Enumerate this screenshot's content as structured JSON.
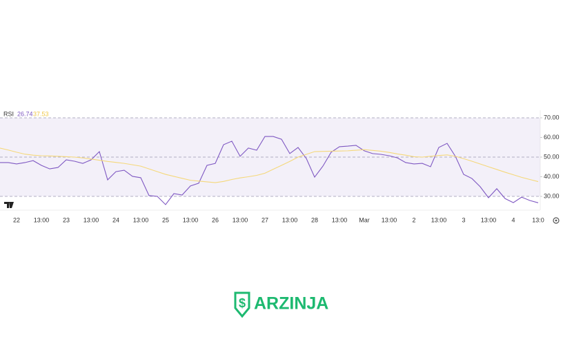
{
  "chart_data": {
    "type": "line",
    "title": "RSI",
    "categories": [
      null,
      null,
      "22",
      null,
      null,
      "13:00",
      null,
      null,
      "23",
      null,
      null,
      "13:00",
      null,
      null,
      "24",
      null,
      null,
      "13:00",
      null,
      null,
      "25",
      null,
      null,
      "13:00",
      null,
      null,
      "26",
      null,
      null,
      "13:00",
      null,
      null,
      "27",
      null,
      null,
      "13:00",
      null,
      null,
      "28",
      null,
      null,
      "13:00",
      null,
      null,
      "Mar",
      null,
      null,
      "13:00",
      null,
      null,
      "2",
      null,
      null,
      "13:00",
      null,
      null,
      "3",
      null,
      null,
      "13:00",
      null,
      null,
      "4",
      null,
      null,
      "13:0"
    ],
    "series": [
      {
        "name": "RSI",
        "color": "#7e57c2",
        "values": [
          47.2,
          47.2,
          46.5,
          47.2,
          48.2,
          45.8,
          44.0,
          44.7,
          48.6,
          47.9,
          46.8,
          48.6,
          52.8,
          38.4,
          42.6,
          43.3,
          40.2,
          39.5,
          30.4,
          30.0,
          25.8,
          31.4,
          30.7,
          35.3,
          36.7,
          45.8,
          46.8,
          56.3,
          58.1,
          50.4,
          54.6,
          53.5,
          60.5,
          60.5,
          59.1,
          51.8,
          54.9,
          49.3,
          39.8,
          45.4,
          52.5,
          55.3,
          55.6,
          56.0,
          53.2,
          51.8,
          51.4,
          50.7,
          49.6,
          47.2,
          46.5,
          46.8,
          45.1,
          54.9,
          57.0,
          50.4,
          41.2,
          39.1,
          34.9,
          29.3,
          33.9,
          28.9,
          26.8,
          29.6,
          27.9,
          26.74
        ]
      },
      {
        "color": "#f5d87a",
        "values": [
          54.6,
          53.6,
          52.5,
          51.5,
          51.0,
          50.7,
          50.6,
          50.4,
          50.2,
          50.0,
          49.6,
          49.0,
          48.4,
          47.8,
          47.3,
          46.8,
          46.1,
          45.4,
          44.0,
          42.6,
          41.2,
          40.2,
          39.2,
          38.2,
          37.8,
          37.4,
          37.0,
          37.6,
          38.6,
          39.4,
          40.0,
          40.7,
          41.8,
          43.8,
          45.8,
          47.8,
          50.0,
          51.4,
          52.8,
          52.9,
          53.0,
          53.1,
          53.2,
          53.5,
          53.8,
          53.4,
          53.0,
          52.4,
          51.6,
          51.0,
          50.2,
          50.0,
          50.4,
          50.8,
          51.1,
          50.4,
          49.2,
          47.9,
          46.5,
          45.1,
          43.7,
          42.3,
          41.0,
          39.7,
          38.6,
          37.53
        ]
      }
    ],
    "ylim": [
      25,
      74
    ],
    "yticks": [
      {
        "value": 30,
        "label": "30.00"
      },
      {
        "value": 40,
        "label": "40.00"
      },
      {
        "value": 50,
        "label": "50.00"
      },
      {
        "value": 60,
        "label": "60.00"
      },
      {
        "value": 70,
        "label": "70.00"
      }
    ],
    "band": [
      30,
      70
    ],
    "band_color": "#7e57c2",
    "hlines": [
      30,
      50,
      70
    ]
  },
  "watermark": "ARZINJA"
}
